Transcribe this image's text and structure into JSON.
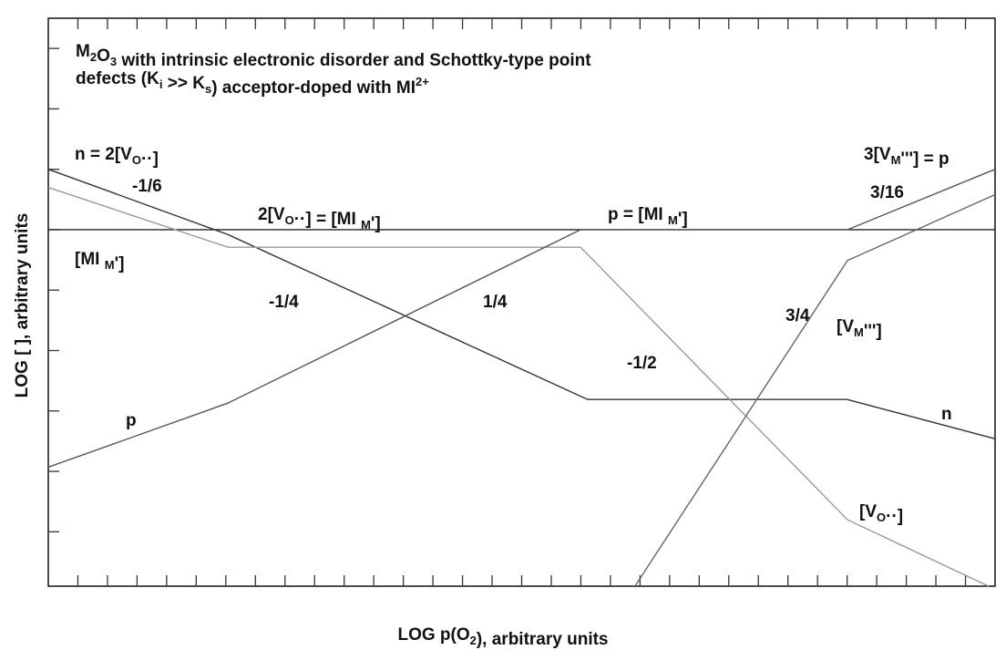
{
  "chart_data": {
    "type": "line",
    "title": [
      [
        {
          "text": "M"
        },
        {
          "sub": "2"
        },
        {
          "text": "O"
        },
        {
          "sub": "3"
        },
        {
          "text": " with intrinsic electronic disorder and Schottky-type point"
        }
      ],
      [
        {
          "text": "defects (K"
        },
        {
          "sub": "i"
        },
        {
          "text": " >> K"
        },
        {
          "sub": "s"
        },
        {
          "text": ") acceptor-doped with MI"
        },
        {
          "sup": "2+"
        }
      ]
    ],
    "xlabel": [
      {
        "text": "LOG p(O"
      },
      {
        "sub": "2"
      },
      {
        "text": "), arbitrary units"
      }
    ],
    "ylabel": [
      {
        "text": "LOG [ ], arbitrary units"
      }
    ],
    "annotations": [
      [
        {
          "text": "n = 2[V"
        },
        {
          "sub": "O"
        },
        {
          "text": "··]"
        }
      ],
      [
        {
          "text": "-1/6"
        }
      ],
      [
        {
          "text": "2[V"
        },
        {
          "sub": "O"
        },
        {
          "text": "··] = [MI "
        },
        {
          "sub": "M"
        },
        {
          "text": "']"
        }
      ],
      [
        {
          "text": "p = [MI "
        },
        {
          "sub": "M"
        },
        {
          "text": "']"
        }
      ],
      [
        {
          "text": "3[V"
        },
        {
          "sub": "M"
        },
        {
          "text": "'''] = p"
        }
      ],
      [
        {
          "text": "3/16"
        }
      ],
      [
        {
          "text": "[MI "
        },
        {
          "sub": "M"
        },
        {
          "text": "']"
        }
      ],
      [
        {
          "text": "-1/4"
        }
      ],
      [
        {
          "text": "1/4"
        }
      ],
      [
        {
          "text": "3/4"
        }
      ],
      [
        {
          "text": "[V"
        },
        {
          "sub": "M"
        },
        {
          "text": "''']"
        }
      ],
      [
        {
          "text": "-1/2"
        }
      ],
      [
        {
          "text": "p"
        }
      ],
      [
        {
          "text": "n"
        }
      ],
      [
        {
          "text": "[V"
        },
        {
          "sub": "O"
        },
        {
          "text": "··]"
        }
      ]
    ],
    "xlim": [
      0,
      32
    ],
    "ylim": [
      -0.9,
      8.5
    ],
    "xticks": [
      1,
      2,
      3,
      4,
      5,
      6,
      7,
      8,
      9,
      10,
      11,
      12,
      13,
      14,
      15,
      16,
      17,
      18,
      19,
      20,
      21,
      22,
      23,
      24,
      25,
      26,
      27,
      28,
      29,
      30,
      31
    ],
    "yticks": [
      0,
      1,
      2,
      3,
      4,
      5,
      6,
      7,
      8
    ],
    "series": [
      {
        "color": "#222222",
        "x": [
          0,
          32
        ],
        "values": [
          5.0,
          5.0
        ]
      },
      {
        "color": "#333333",
        "x": [
          0,
          6.07,
          18.23,
          27.0,
          32
        ],
        "values": [
          6.0,
          4.92,
          2.19,
          2.19,
          1.54
        ]
      },
      {
        "color": "#9a9a9a",
        "x": [
          0,
          6.07,
          17.99,
          27.01,
          31.78
        ],
        "values": [
          5.7,
          4.71,
          4.71,
          0.2,
          -0.9
        ]
      },
      {
        "color": "#555555",
        "x": [
          0,
          6.07,
          17.99,
          27.01,
          32
        ],
        "values": [
          1.07,
          2.13,
          5.0,
          5.0,
          6.0
        ]
      },
      {
        "color": "#666666",
        "x": [
          19.83,
          27.01,
          32
        ],
        "values": [
          -0.9,
          4.49,
          5.58
        ]
      }
    ]
  }
}
